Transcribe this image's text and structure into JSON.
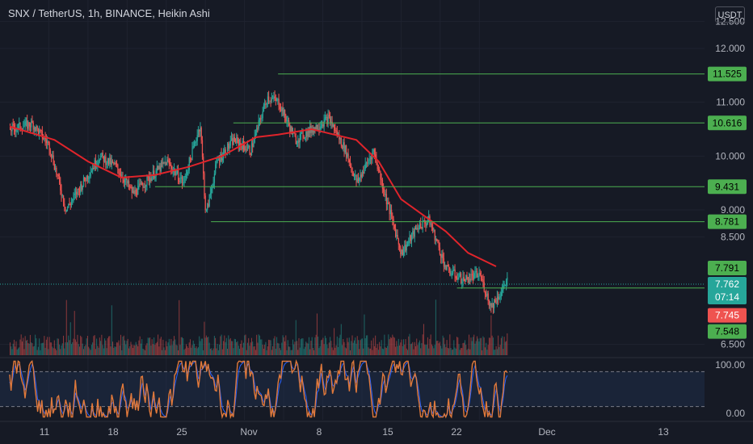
{
  "header": {
    "title": "SNX / TetherUS, 1h, BINANCE, Heikin Ashi",
    "currency": "USDT"
  },
  "colors": {
    "background": "#161a25",
    "grid": "#1f2330",
    "up": "#26a69a",
    "down": "#ef5350",
    "ma": "#e0242b",
    "level": "#4caf50",
    "stoch_k": "#e0793b",
    "stoch_d": "#2962ff",
    "axis_text": "#b2b5be"
  },
  "chart_data": {
    "type": "candlestick",
    "x": [
      "11",
      "18",
      "25",
      "Nov",
      "8",
      "15",
      "22",
      "Dec",
      "13"
    ],
    "y_ticks": [
      6.5,
      8.5,
      9.0,
      10.0,
      11.0,
      12.0,
      12.5
    ],
    "y_ticks_labels": [
      "6.500",
      "8.500",
      "9.000",
      "10.000",
      "11.000",
      "12.000",
      "12.500"
    ],
    "ylim": [
      6.3,
      12.6
    ],
    "price_path": [
      [
        0,
        10.5
      ],
      [
        4,
        10.6
      ],
      [
        7,
        10.2
      ],
      [
        10,
        9.0
      ],
      [
        13,
        9.5
      ],
      [
        16,
        10.0
      ],
      [
        19,
        9.8
      ],
      [
        22,
        9.3
      ],
      [
        25,
        9.6
      ],
      [
        28,
        9.9
      ],
      [
        31,
        9.5
      ],
      [
        34,
        10.6
      ],
      [
        35,
        8.9
      ],
      [
        37,
        9.9
      ],
      [
        40,
        10.3
      ],
      [
        43,
        10.1
      ],
      [
        46,
        11.1
      ],
      [
        48,
        11.0
      ],
      [
        51,
        10.3
      ],
      [
        54,
        10.5
      ],
      [
        57,
        10.7
      ],
      [
        60,
        10.1
      ],
      [
        62,
        9.5
      ],
      [
        65,
        10.1
      ],
      [
        67,
        9.3
      ],
      [
        70,
        8.2
      ],
      [
        73,
        8.7
      ],
      [
        75,
        8.8
      ],
      [
        78,
        7.9
      ],
      [
        81,
        7.7
      ],
      [
        84,
        7.8
      ],
      [
        86,
        7.2
      ],
      [
        88,
        7.5
      ],
      [
        89,
        7.75
      ]
    ],
    "ma_path": [
      [
        0,
        10.55
      ],
      [
        8,
        10.3
      ],
      [
        14,
        9.9
      ],
      [
        20,
        9.6
      ],
      [
        26,
        9.65
      ],
      [
        32,
        9.8
      ],
      [
        38,
        10.0
      ],
      [
        44,
        10.35
      ],
      [
        48,
        10.4
      ],
      [
        54,
        10.5
      ],
      [
        58,
        10.4
      ],
      [
        62,
        10.3
      ],
      [
        66,
        9.9
      ],
      [
        70,
        9.2
      ],
      [
        74,
        8.9
      ],
      [
        78,
        8.6
      ],
      [
        82,
        8.2
      ],
      [
        87,
        7.95
      ]
    ],
    "levels": [
      {
        "price": 11.525,
        "label": "11.525",
        "from": 48
      },
      {
        "price": 10.616,
        "label": "10.616",
        "from": 40
      },
      {
        "price": 9.431,
        "label": "9.431",
        "from": 26
      },
      {
        "price": 8.781,
        "label": "8.781",
        "from": 36
      },
      {
        "price": 7.548,
        "label": "7.548",
        "from": 80
      }
    ],
    "price_tags": [
      {
        "label": "7.791",
        "price": 7.92,
        "color": "#4caf50"
      },
      {
        "label": "7.762",
        "price": 7.62,
        "color": "#26a69a"
      },
      {
        "label": "07:14",
        "price": 7.38,
        "color": "#26a69a"
      },
      {
        "label": "7.745",
        "price": 7.04,
        "color": "#ef5350"
      },
      {
        "label": "7.548",
        "price": 6.74,
        "color": "#4caf50"
      }
    ],
    "indicator": {
      "name": "Stochastic",
      "y_ticks": [
        "100.00",
        "0.00"
      ],
      "upper_band": 80,
      "lower_band": 20
    }
  }
}
